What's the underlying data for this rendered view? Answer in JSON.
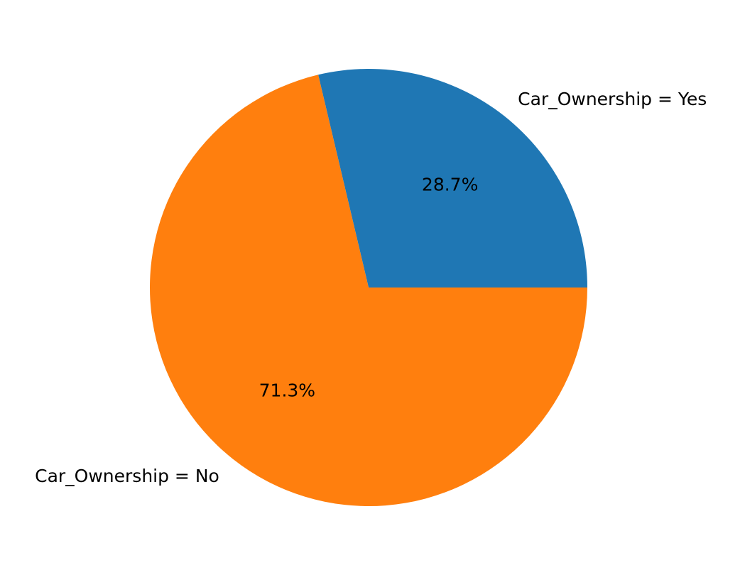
{
  "chart_data": {
    "type": "pie",
    "title": "",
    "categories": [
      "Car_Ownership = Yes",
      "Car_Ownership = No"
    ],
    "values": [
      28.7,
      71.3
    ],
    "value_labels": [
      "28.7%",
      "71.3%"
    ],
    "colors": [
      "#1f77b4",
      "#ff7f0e"
    ],
    "start_angle_deg": 0,
    "direction": "counterclockwise",
    "legend": "none"
  }
}
